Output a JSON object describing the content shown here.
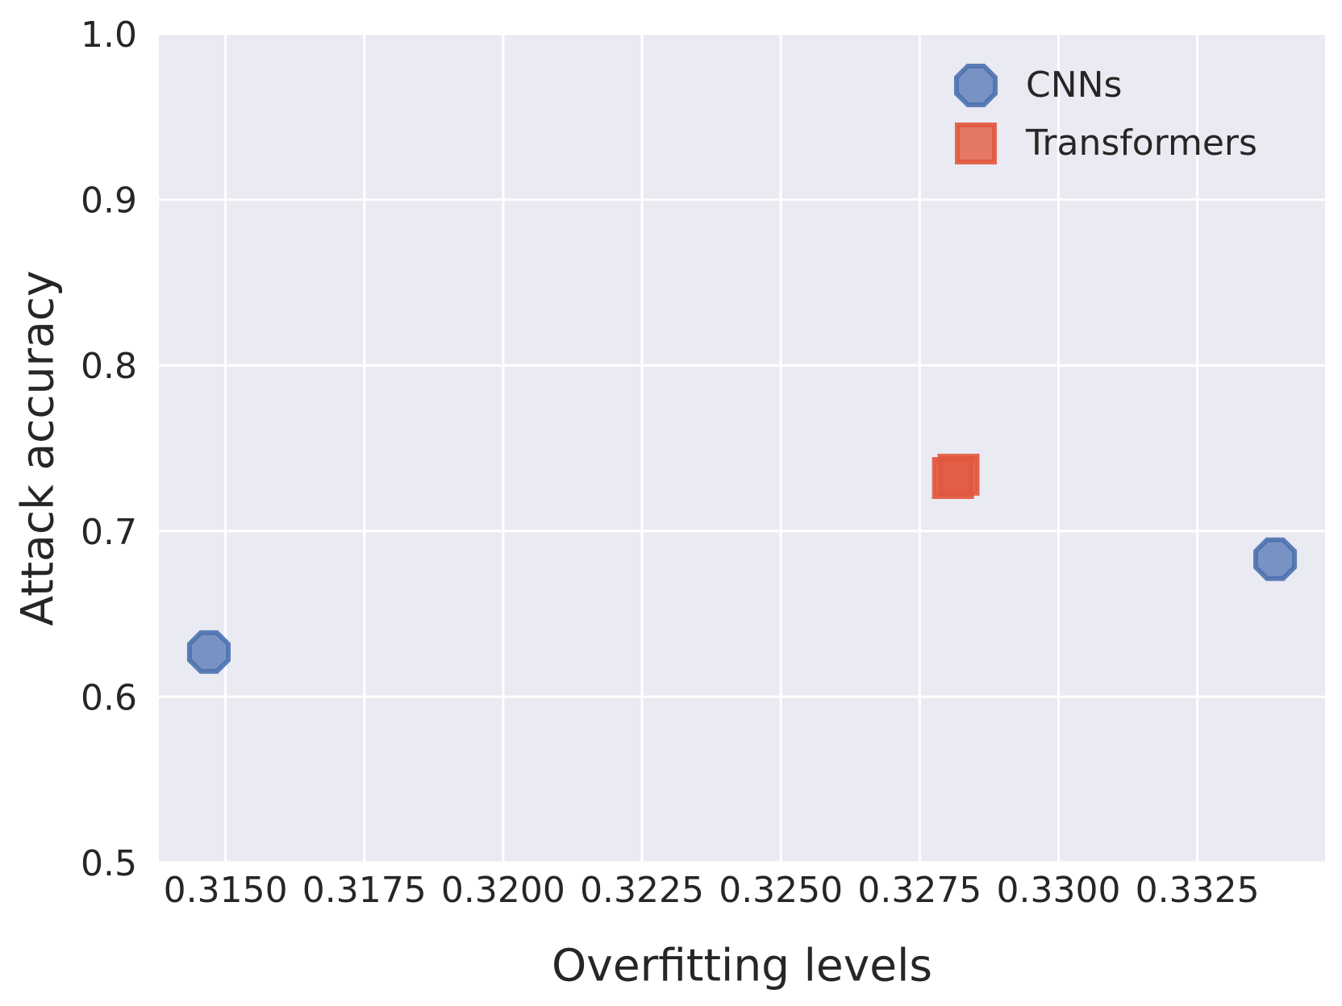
{
  "figure": {
    "background": "#ffffff",
    "plot_background": "#eaeaf2",
    "grid_color": "#ffffff",
    "text_color": "#262626"
  },
  "chart_data": {
    "type": "scatter",
    "title": "",
    "xlabel": "Overfitting levels",
    "ylabel": "Attack accuracy",
    "xlim": [
      0.3138,
      0.3348
    ],
    "ylim": [
      0.5,
      1.0
    ],
    "xticks": [
      0.315,
      0.3175,
      0.32,
      0.3225,
      0.325,
      0.3275,
      0.33,
      0.3325
    ],
    "xtick_labels": [
      "0.3150",
      "0.3175",
      "0.3200",
      "0.3225",
      "0.3250",
      "0.3275",
      "0.3300",
      "0.3325"
    ],
    "yticks": [
      0.5,
      0.6,
      0.7,
      0.8,
      0.9,
      1.0
    ],
    "ytick_labels": [
      "0.5",
      "0.6",
      "0.7",
      "0.8",
      "0.9",
      "1.0"
    ],
    "grid": true,
    "legend_position": "upper right",
    "series": [
      {
        "name": "CNNs",
        "marker": "octagon",
        "fill": "rgba(76,114,176,0.72)",
        "edge": "rgba(76,114,176,0.9)",
        "points": [
          [
            0.3147,
            0.627
          ],
          [
            0.3339,
            0.683
          ]
        ]
      },
      {
        "name": "Transformers",
        "marker": "square",
        "fill": "rgba(225,87,62,0.78)",
        "edge": "rgba(225,87,62,0.9)",
        "points": [
          [
            0.3281,
            0.732
          ],
          [
            0.3282,
            0.734
          ]
        ]
      }
    ]
  }
}
